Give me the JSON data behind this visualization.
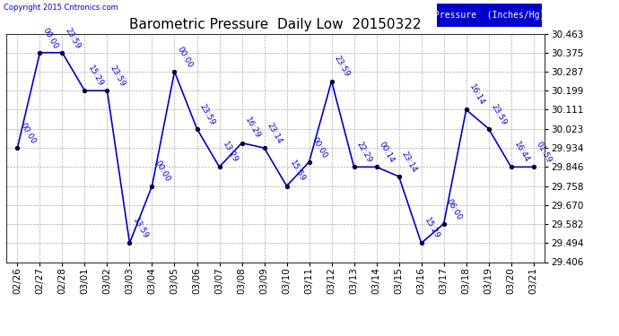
{
  "title": "Barometric Pressure  Daily Low  20150322",
  "ylabel": "Pressure  (Inches/Hg)",
  "copyright": "Copyright 2015 Cntronics.com",
  "ylim": [
    29.406,
    30.463
  ],
  "yticks": [
    29.406,
    29.494,
    29.582,
    29.67,
    29.758,
    29.846,
    29.934,
    30.023,
    30.111,
    30.199,
    30.287,
    30.375,
    30.463
  ],
  "line_color": "#0000cc",
  "marker_color": "#000033",
  "bg_color": "#ffffff",
  "grid_color": "#aaaaaa",
  "dates": [
    "02/26",
    "02/27",
    "02/28",
    "03/01",
    "03/02",
    "03/03",
    "03/04",
    "03/05",
    "03/06",
    "03/07",
    "03/08",
    "03/09",
    "03/10",
    "03/11",
    "03/12",
    "03/13",
    "03/14",
    "03/15",
    "03/16",
    "03/17",
    "03/18",
    "03/19",
    "03/20",
    "03/21"
  ],
  "values": [
    29.934,
    30.375,
    30.375,
    30.199,
    30.199,
    29.494,
    29.758,
    30.287,
    30.023,
    29.846,
    29.957,
    29.934,
    29.758,
    29.869,
    30.243,
    29.846,
    29.846,
    29.802,
    29.494,
    29.583,
    30.111,
    30.023,
    29.846,
    29.846
  ],
  "point_labels": [
    "00:00",
    "00:00",
    "23:59",
    "15:29",
    "23:59",
    "13:59",
    "00:00",
    "00:00",
    "23:59",
    "13:29",
    "16:29",
    "23:14",
    "15:59",
    "00:00",
    "23:59",
    "22:29",
    "00:14",
    "23:14",
    "15:29",
    "06:00",
    "16:14",
    "23:59",
    "16:44",
    "01:59"
  ],
  "title_fontsize": 11,
  "tick_fontsize": 7.5,
  "label_fontsize": 6.5,
  "legend_bg": "#0000cc",
  "legend_text_color": "#ffffff"
}
